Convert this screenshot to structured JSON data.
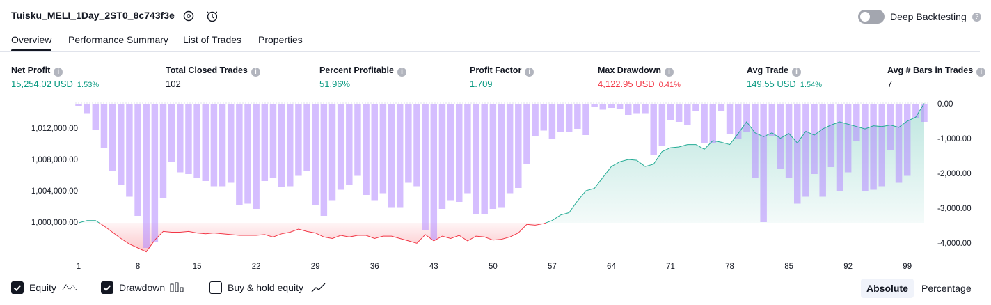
{
  "header": {
    "title": "Tuisku_MELI_1Day_2ST0_8c743f3e",
    "deep_backtesting": "Deep Backtesting",
    "deep_backtesting_on": false
  },
  "tabs": {
    "items": [
      "Overview",
      "Performance Summary",
      "List of Trades",
      "Properties"
    ],
    "active": 0
  },
  "metrics": [
    {
      "label": "Net Profit",
      "value": "15,254.02 USD",
      "percent": "1.53%",
      "color": "#089981"
    },
    {
      "label": "Total Closed Trades",
      "value": "102",
      "color": "#131722"
    },
    {
      "label": "Percent Profitable",
      "value": "51.96%",
      "color": "#089981"
    },
    {
      "label": "Profit Factor",
      "value": "1.709",
      "color": "#089981"
    },
    {
      "label": "Max Drawdown",
      "value": "4,122.95 USD",
      "percent": "0.41%",
      "color": "#f23645"
    },
    {
      "label": "Avg Trade",
      "value": "149.55 USD",
      "percent": "1.54%",
      "color": "#089981"
    },
    {
      "label": "Avg # Bars in Trades",
      "value": "7",
      "color": "#131722"
    }
  ],
  "chart_data": {
    "type": "combo",
    "x": [
      1,
      2,
      3,
      4,
      5,
      6,
      7,
      8,
      9,
      10,
      11,
      12,
      13,
      14,
      15,
      16,
      17,
      18,
      19,
      20,
      21,
      22,
      23,
      24,
      25,
      26,
      27,
      28,
      29,
      30,
      31,
      32,
      33,
      34,
      35,
      36,
      37,
      38,
      39,
      40,
      41,
      42,
      43,
      44,
      45,
      46,
      47,
      48,
      49,
      50,
      51,
      52,
      53,
      54,
      55,
      56,
      57,
      58,
      59,
      60,
      61,
      62,
      63,
      64,
      65,
      66,
      67,
      68,
      69,
      70,
      71,
      72,
      73,
      74,
      75,
      76,
      77,
      78,
      79,
      80,
      81,
      82,
      83,
      84,
      85,
      86,
      87,
      88,
      89,
      90,
      91,
      92,
      93,
      94,
      95,
      96,
      97,
      98,
      99,
      100,
      101
    ],
    "xlim": [
      1,
      101
    ],
    "xticks": [
      1,
      8,
      15,
      22,
      29,
      36,
      43,
      50,
      57,
      64,
      71,
      78,
      85,
      92,
      99
    ],
    "series": [
      {
        "name": "Equity",
        "type": "line",
        "axis": "y",
        "visible": true,
        "color": "#22ab94",
        "negative_color": "#f23645",
        "values": [
          1000000,
          1000300,
          1000300,
          999600,
          998800,
          998000,
          997300,
          996800,
          996300,
          997800,
          998900,
          998800,
          998800,
          998900,
          998700,
          998600,
          998700,
          998600,
          998500,
          998400,
          998400,
          998400,
          998500,
          998200,
          998600,
          998800,
          999200,
          998900,
          998700,
          998200,
          998000,
          998400,
          998200,
          998400,
          998400,
          998000,
          998300,
          998300,
          998000,
          997700,
          997400,
          998500,
          997700,
          998300,
          998000,
          998400,
          997700,
          998300,
          998200,
          997800,
          997900,
          998200,
          998700,
          999800,
          999700,
          999900,
          1000300,
          1001000,
          1001300,
          1002800,
          1004100,
          1004400,
          1005800,
          1007200,
          1007800,
          1008100,
          1008000,
          1007200,
          1007500,
          1009100,
          1009600,
          1009700,
          1010000,
          1010000,
          1009400,
          1010500,
          1010300,
          1010000,
          1011400,
          1012900,
          1011500,
          1011000,
          1011500,
          1010800,
          1011400,
          1010200,
          1011700,
          1011200,
          1012000,
          1012500,
          1012900,
          1012600,
          1012300,
          1012000,
          1012400,
          1012300,
          1012500,
          1012200,
          1013000,
          1013500,
          1015254
        ]
      },
      {
        "name": "Drawdown",
        "type": "bar",
        "axis": "y2",
        "visible": true,
        "color": "#b388ff",
        "values": [
          -40,
          -250,
          -730,
          -1260,
          -1900,
          -2300,
          -2650,
          -3200,
          -4120,
          -3950,
          -2680,
          -1650,
          -1950,
          -2000,
          -2100,
          -2200,
          -2350,
          -2350,
          -2250,
          -2900,
          -2850,
          -3000,
          -2200,
          -2100,
          -2380,
          -2350,
          -2050,
          -1900,
          -2900,
          -3200,
          -2750,
          -2450,
          -2300,
          -2050,
          -2600,
          -2750,
          -2550,
          -2950,
          -2950,
          -2250,
          -2350,
          -3600,
          -3900,
          -3000,
          -2750,
          -2800,
          -2550,
          -3150,
          -3150,
          -3000,
          -2950,
          -2550,
          -2400,
          -1700,
          -900,
          -750,
          -980,
          -780,
          -800,
          -700,
          -880,
          -60,
          -150,
          -100,
          -120,
          -300,
          -250,
          -250,
          -1450,
          -1200,
          -450,
          -500,
          -580,
          -180,
          -1100,
          -1100,
          -200,
          -850,
          -1000,
          -800,
          -2100,
          -3380,
          -900,
          -1850,
          -2100,
          -2850,
          -2650,
          -2000,
          -2650,
          -1800,
          -2500,
          -1950,
          -1050,
          -2500,
          -2450,
          -2350,
          -1300,
          -2250,
          -2050,
          -400,
          -500
        ]
      }
    ],
    "ylim": [
      996000,
      1015300
    ],
    "yticks": [
      {
        "value": 1000000,
        "label": "1,000,000.00"
      },
      {
        "value": 1004000,
        "label": "1,004,000.00"
      },
      {
        "value": 1008000,
        "label": "1,008,000.00"
      },
      {
        "value": 1012000,
        "label": "1,012,000.00"
      }
    ],
    "y2lim": [
      -4300,
      0
    ],
    "y2ticks": [
      {
        "value": 0,
        "label": "0.00"
      },
      {
        "value": -1000,
        "label": "-1,000.00"
      },
      {
        "value": -2000,
        "label": "-2,000.00"
      },
      {
        "value": -3000,
        "label": "-3,000.00"
      },
      {
        "value": -4000,
        "label": "-4,000.00"
      }
    ],
    "grid": false
  },
  "legend": {
    "buy_hold": {
      "name": "Buy & hold equity",
      "visible": false
    },
    "modes": [
      "Absolute",
      "Percentage"
    ],
    "active_mode": 0
  }
}
